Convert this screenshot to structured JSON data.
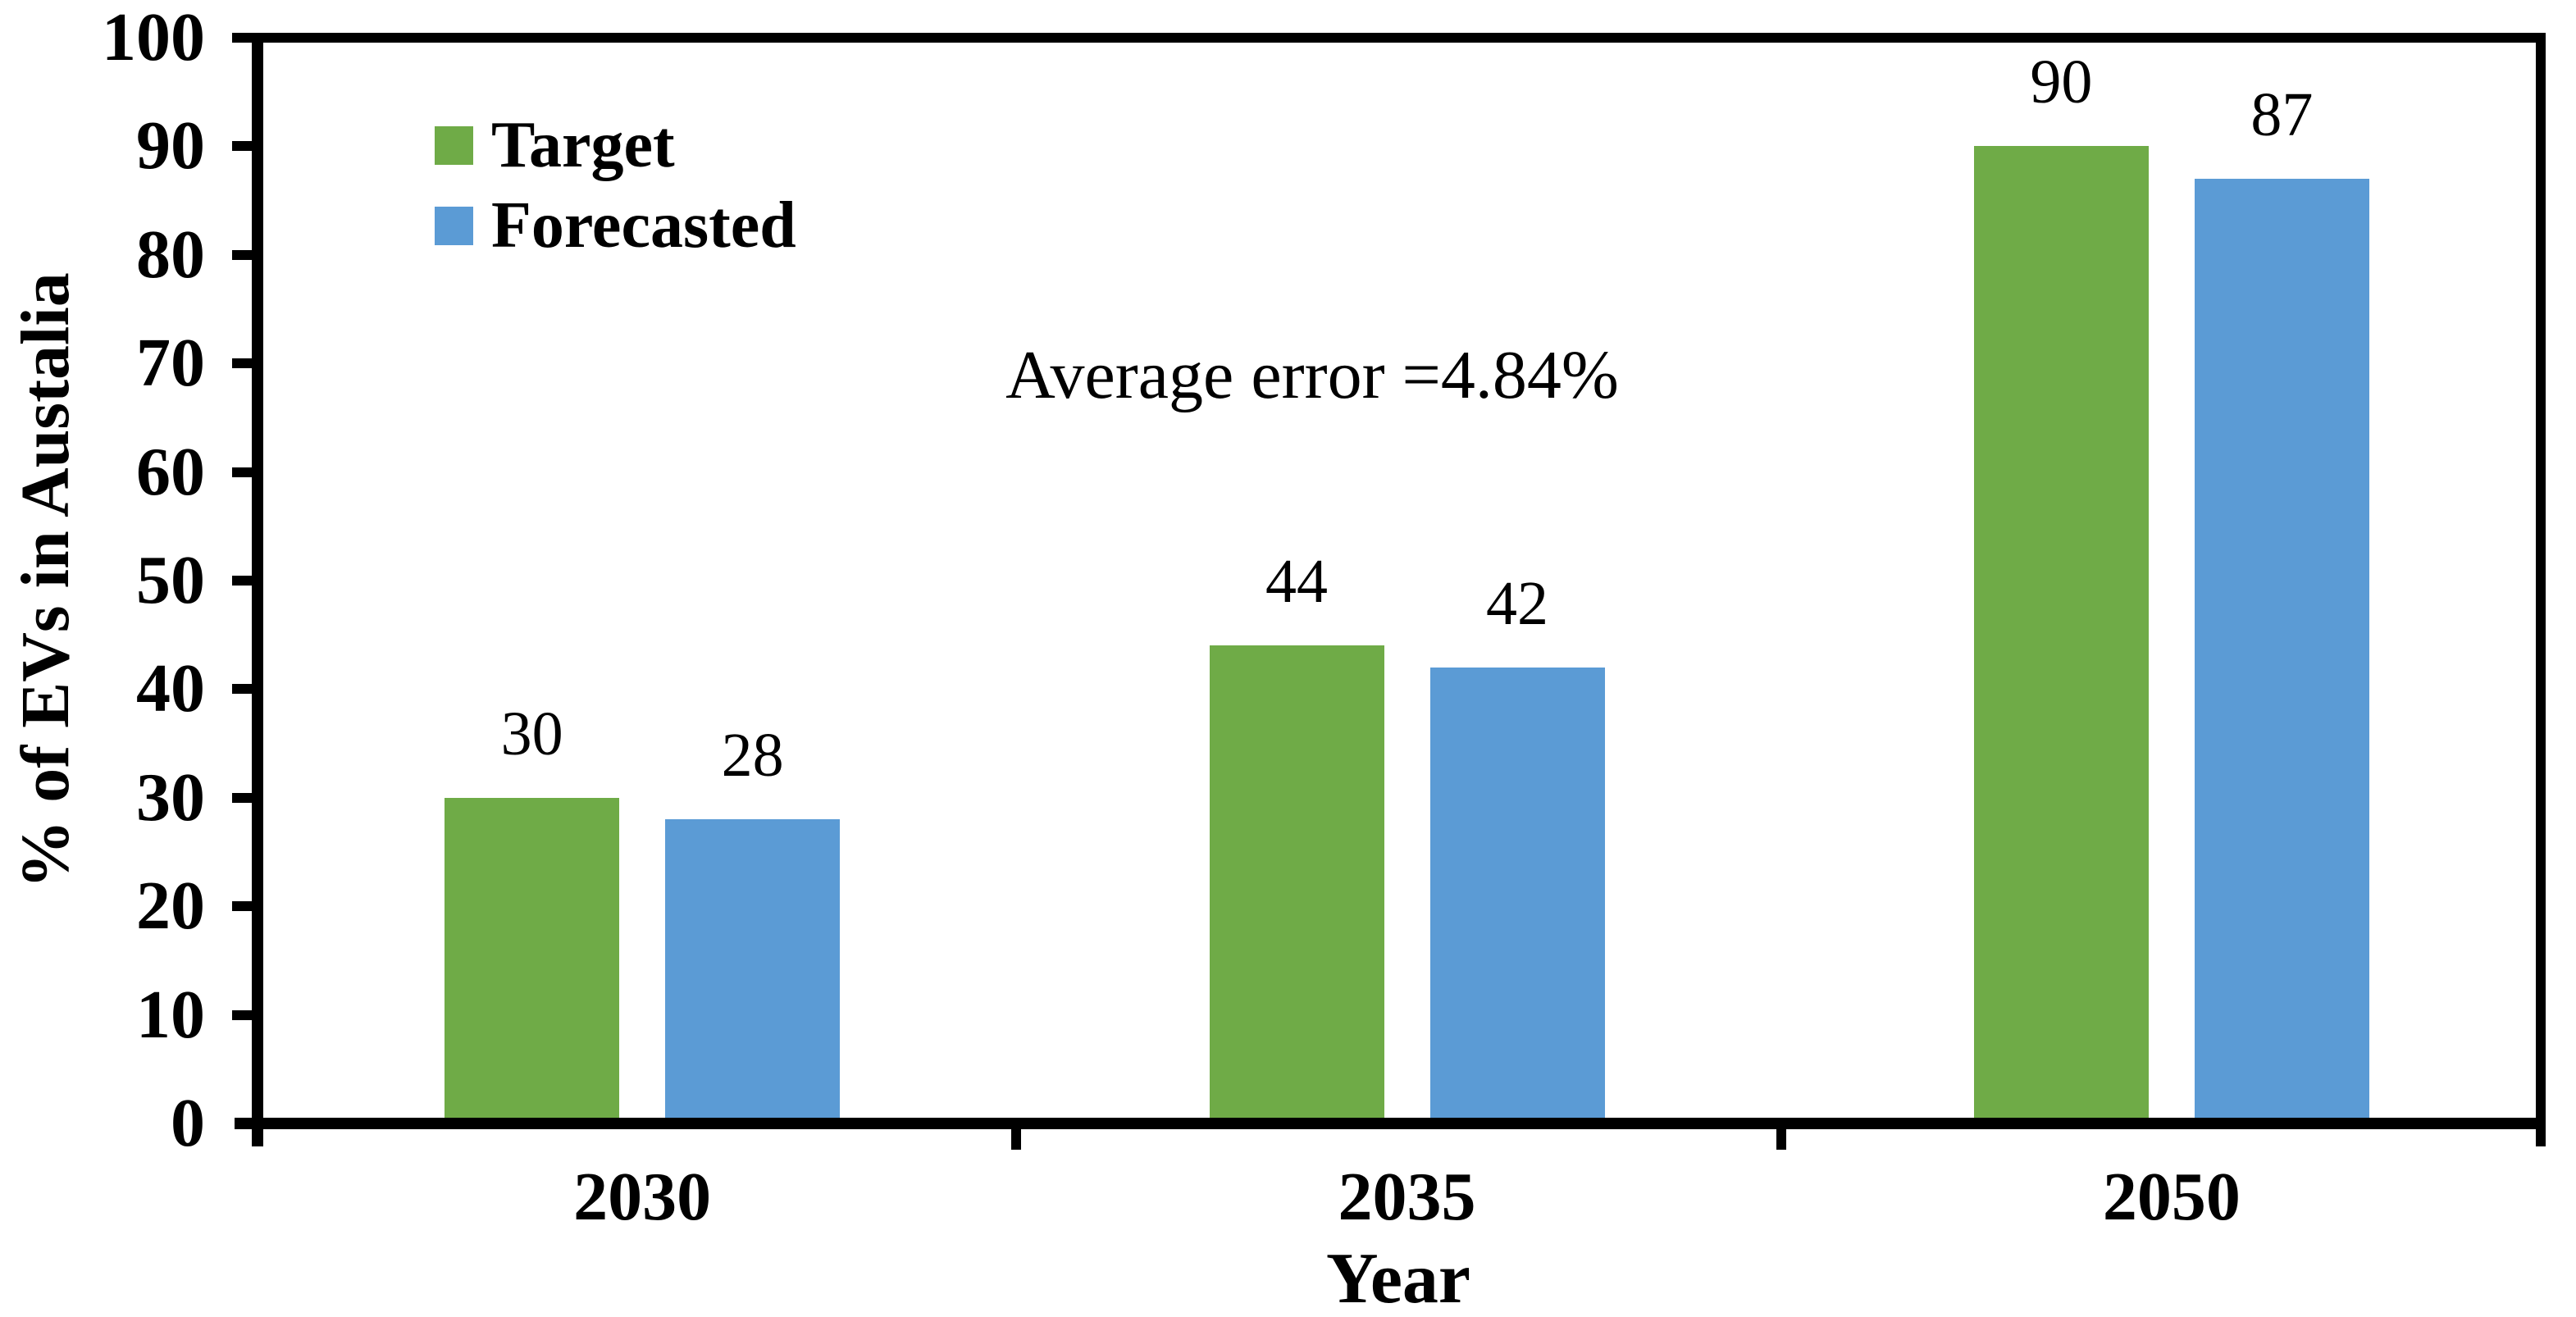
{
  "chart_data": {
    "type": "bar",
    "title": "",
    "categories": [
      "2030",
      "2035",
      "2050"
    ],
    "series": [
      {
        "name": "Target",
        "color": "#6FAB47",
        "values": [
          30,
          44,
          90
        ]
      },
      {
        "name": "Forecasted",
        "color": "#5B9BD5",
        "values": [
          28,
          42,
          87
        ]
      }
    ],
    "xlabel": "Year",
    "ylabel": "% of EVs in Austalia",
    "ylim": [
      0,
      100
    ],
    "yticks": [
      0,
      10,
      20,
      30,
      40,
      50,
      60,
      70,
      80,
      90,
      100
    ],
    "annotation": "Average error =4.84%",
    "data_labels": true,
    "legend_position": "upper-left-inside",
    "grid": false,
    "axis_color": "#000000",
    "text_color": "#000000",
    "background": "#FFFFFF"
  }
}
